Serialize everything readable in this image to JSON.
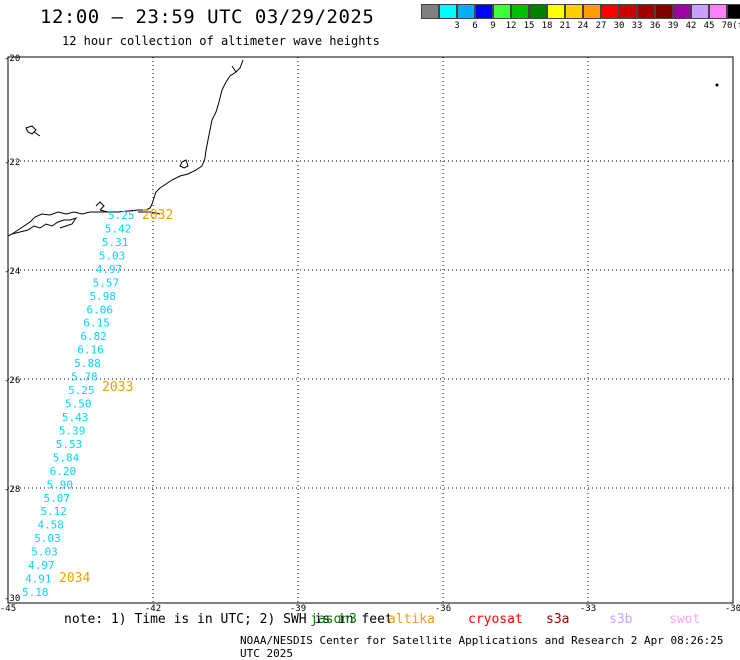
{
  "title": "12:00 — 23:59 UTC 03/29/2025",
  "subtitle": "12 hour collection of altimeter wave heights",
  "legend": {
    "unit": "(ft)",
    "items": [
      {
        "label": "",
        "color": "#808080"
      },
      {
        "label": "3",
        "color": "#00ffff"
      },
      {
        "label": "6",
        "color": "#00b0f0"
      },
      {
        "label": "9",
        "color": "#0000ff"
      },
      {
        "label": "12",
        "color": "#40ff40"
      },
      {
        "label": "15",
        "color": "#00c000"
      },
      {
        "label": "18",
        "color": "#008000"
      },
      {
        "label": "21",
        "color": "#ffff00"
      },
      {
        "label": "24",
        "color": "#ffd000"
      },
      {
        "label": "27",
        "color": "#ffa000"
      },
      {
        "label": "30",
        "color": "#ff0000"
      },
      {
        "label": "33",
        "color": "#d00000"
      },
      {
        "label": "36",
        "color": "#a00000"
      },
      {
        "label": "39",
        "color": "#800000"
      },
      {
        "label": "42",
        "color": "#a000a0"
      },
      {
        "label": "45",
        "color": "#c8a0ff"
      },
      {
        "label": "70",
        "color": "#ff80ff"
      },
      {
        "label": "",
        "color": "#000000"
      }
    ]
  },
  "axes": {
    "lat_labels": [
      "-20",
      "-22",
      "-24",
      "-26",
      "-28",
      "-30"
    ],
    "lon_labels": [
      "-45",
      "-42",
      "-39",
      "-36",
      "-33",
      "-30"
    ]
  },
  "track": {
    "color": "#00d8f0",
    "values": [
      "5.25",
      "5.42",
      "5.31",
      "5.03",
      "4.97",
      "5.57",
      "5.98",
      "6.06",
      "6.15",
      "6.82",
      "6.16",
      "5.88",
      "5.78",
      "5.25",
      "5.50",
      "5.43",
      "5.39",
      "5.53",
      "5.84",
      "6.20",
      "5.90",
      "5.07",
      "5.12",
      "4.58",
      "5.03",
      "5.03",
      "4.97",
      "4.91",
      "5.18"
    ],
    "time_labels": [
      "2032",
      "2033",
      "2034"
    ],
    "time_color": "#f0a000"
  },
  "note": "note: 1) Time is in UTC; 2) SWH is in feet",
  "satellites": [
    {
      "name": "jason3",
      "color": "#008000"
    },
    {
      "name": "altika",
      "color": "#f0a000"
    },
    {
      "name": "cryosat",
      "color": "#ff0000"
    },
    {
      "name": "s3a",
      "color": "#a00000"
    },
    {
      "name": "s3b",
      "color": "#c8a0ff"
    },
    {
      "name": "swot",
      "color": "#ffa0ff"
    }
  ],
  "footer": "NOAA/NESDIS Center for Satellite Applications and Research    2 Apr 08:26:25 UTC 2025"
}
